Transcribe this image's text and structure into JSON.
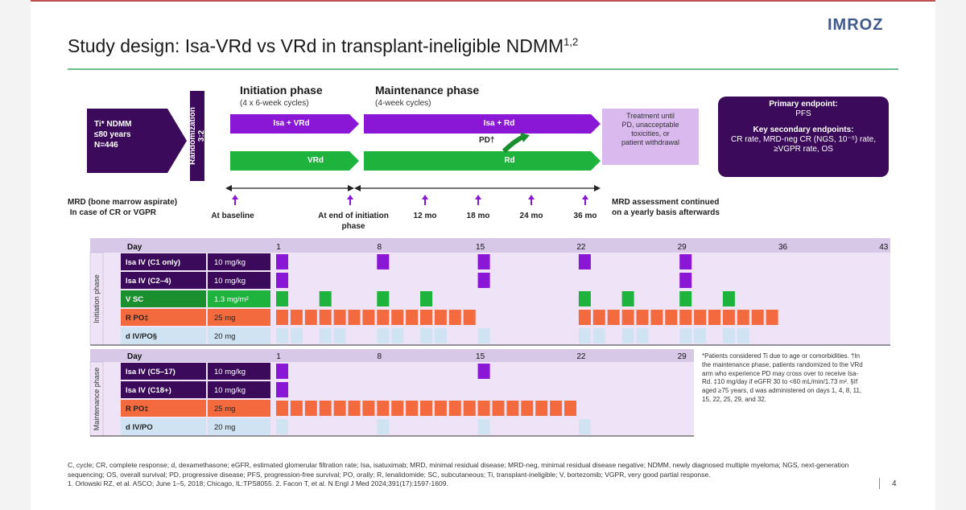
{
  "logo": "IMROZ",
  "title": {
    "main": "Study design: Isa-VRd vs VRd in transplant-ineligible NDMM",
    "sup": "1,2"
  },
  "phases": {
    "initiation": {
      "title": "Initiation phase",
      "sub": "(4 x 6-week cycles)"
    },
    "maintenance": {
      "title": "Maintenance phase",
      "sub": "(4-week cycles)"
    }
  },
  "population": "Ti* NDMM\n≤80 years\nN=446",
  "randomization": "Randomization\n3:2",
  "arms": {
    "isa_vrd": "Isa + VRd",
    "vrd": "VRd",
    "isa_rd": "Isa + Rd",
    "rd": "Rd",
    "pd": "PD†"
  },
  "treatment_until": "Treatment until\nPD, unacceptable\ntoxicities, or\npatient withdrawal",
  "endpoints": {
    "primary_title": "Primary endpoint:",
    "primary": "PFS",
    "secondary_title": "Key secondary endpoints:",
    "secondary": "CR rate, MRD-neg CR (NGS, 10⁻⁵) rate, ≥VGPR rate, OS"
  },
  "mrd": {
    "left": "MRD (bone marrow aspirate)\n In case of CR or VGPR",
    "right": "MRD assessment continued\non a yearly basis afterwards",
    "timepoints": [
      "At baseline",
      "At end of initiation\nphase",
      "12 mo",
      "18 mo",
      "24 mo",
      "36 mo"
    ]
  },
  "initiation_table": {
    "side_label": "Initiation phase",
    "day_header": "Day",
    "day_ticks": [
      "1",
      "8",
      "15",
      "22",
      "29",
      "36",
      "43"
    ],
    "rows": [
      {
        "drug": "Isa IV (C1 only)",
        "dose": "10 mg/kg"
      },
      {
        "drug": "Isa IV (C2–4)",
        "dose": "10 mg/kg"
      },
      {
        "drug": "V SC",
        "dose": "1.3 mg/m²"
      },
      {
        "drug": "R PO‡",
        "dose": "25 mg"
      },
      {
        "drug": "d IV/PO§",
        "dose": "20 mg"
      }
    ]
  },
  "maintenance_table": {
    "side_label": "Maintenance phase",
    "day_header": "Day",
    "day_ticks": [
      "1",
      "8",
      "15",
      "22",
      "29"
    ],
    "rows": [
      {
        "drug": "Isa IV (C5–17)",
        "dose": "10 mg/kg"
      },
      {
        "drug": "Isa IV (C18+)",
        "dose": "10 mg/kg"
      },
      {
        "drug": "R PO‡",
        "dose": "25 mg"
      },
      {
        "drug": "d IV/PO",
        "dose": "20 mg"
      }
    ]
  },
  "footnotes": "*Patients considered Ti due to age or comorbidities. †In the maintenance phase, patients randomized to the VRd arm who experience PD may cross over to receive Isa-Rd. ‡10 mg/day if eGFR 30 to <60 mL/min/1.73 m². §If aged ≥75 years, d was administered on days 1, 4, 8, 11, 15, 22, 25, 29, and 32.",
  "abbreviations": "C, cycle; CR, complete response; d, dexamethasone; eGFR, estimated glomerular filtration rate; Isa, isatuximab; MRD, minimal residual disease; MRD-neg, minimal residual disease negative; NDMM, newly diagnosed multiple myeloma; NGS, next-generation sequencing; OS, overall survival; PD, progressive disease; PFS, progression-free survival; PO, orally; R, lenalidomide; SC, subcutaneous; Ti, transplant-ineligible; V, bortezomib; VGPR, very good partial response.",
  "references": "1. Orlowski RZ, et al. ASCO; June 1–5, 2018; Chicago, IL:TPS8055. 2. Facon T, et al. N Engl J Med 2024;391(17):1597-1609.",
  "page": "4",
  "colors": {
    "dark_purple": "#3b0a5a",
    "purple": "#8a16d6",
    "green": "#1db33c",
    "orange": "#f26a3d",
    "light_blue": "#cfe3f3",
    "lavender": "#efe3f8",
    "dark_green": "#1a8f2e"
  }
}
